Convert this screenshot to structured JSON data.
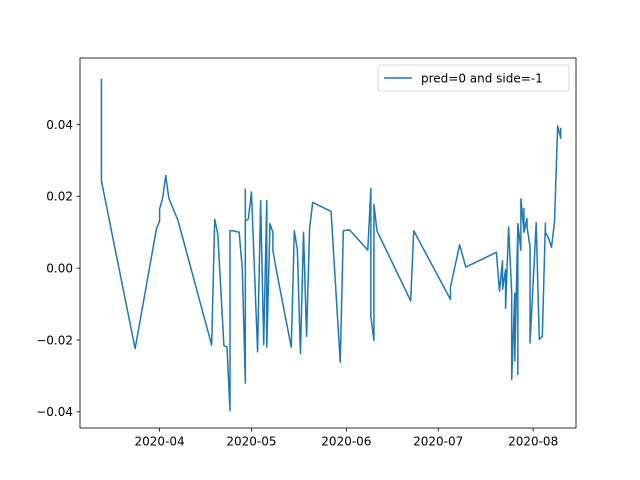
{
  "chart_data": {
    "type": "line",
    "title": "",
    "xlabel": "",
    "ylabel": "",
    "legend": {
      "placement": "upper-right"
    },
    "grid": false,
    "xlim": [
      "2020-03-06",
      "2020-08-15"
    ],
    "ylim": [
      -0.0445,
      0.0585
    ],
    "x_ticks": [
      "2020-04-01",
      "2020-05-01",
      "2020-06-01",
      "2020-07-01",
      "2020-08-01"
    ],
    "x_tick_labels": [
      "2020-04",
      "2020-05",
      "2020-06",
      "2020-07",
      "2020-08"
    ],
    "y_ticks": [
      -0.04,
      -0.02,
      0.0,
      0.02,
      0.04
    ],
    "y_tick_labels": [
      "−0.04",
      "−0.02",
      "0.00",
      "0.02",
      "0.04"
    ],
    "series": [
      {
        "name": "pred=0 and side=-1",
        "color": "#1f77b4",
        "x": [
          "2020-03-13",
          "2020-03-13",
          "2020-03-24",
          "2020-03-31",
          "2020-04-01",
          "2020-04-01",
          "2020-04-02",
          "2020-04-03",
          "2020-04-04",
          "2020-04-07",
          "2020-04-18",
          "2020-04-19",
          "2020-04-20",
          "2020-04-22",
          "2020-04-23",
          "2020-04-24",
          "2020-04-24",
          "2020-04-24",
          "2020-04-25",
          "2020-04-27",
          "2020-04-27",
          "2020-04-28",
          "2020-04-29",
          "2020-04-29",
          "2020-04-29",
          "2020-04-30",
          "2020-05-01",
          "2020-05-03",
          "2020-05-04",
          "2020-05-05",
          "2020-05-06",
          "2020-05-06",
          "2020-05-07",
          "2020-05-07",
          "2020-05-08",
          "2020-05-08",
          "2020-05-09",
          "2020-05-14",
          "2020-05-15",
          "2020-05-16",
          "2020-05-17",
          "2020-05-18",
          "2020-05-19",
          "2020-05-20",
          "2020-05-21",
          "2020-05-27",
          "2020-05-30",
          "2020-05-31",
          "2020-06-02",
          "2020-06-08",
          "2020-06-09",
          "2020-06-09",
          "2020-06-10",
          "2020-06-10",
          "2020-06-11",
          "2020-06-22",
          "2020-06-23",
          "2020-07-05",
          "2020-07-05",
          "2020-07-08",
          "2020-07-10",
          "2020-07-20",
          "2020-07-21",
          "2020-07-22",
          "2020-07-22",
          "2020-07-23",
          "2020-07-23",
          "2020-07-24",
          "2020-07-25",
          "2020-07-25",
          "2020-07-26",
          "2020-07-26",
          "2020-07-27",
          "2020-07-27",
          "2020-07-27",
          "2020-07-28",
          "2020-07-28",
          "2020-07-29",
          "2020-07-29",
          "2020-07-29",
          "2020-07-30",
          "2020-07-30",
          "2020-07-31",
          "2020-07-31",
          "2020-08-02",
          "2020-08-03",
          "2020-08-04",
          "2020-08-05",
          "2020-08-05",
          "2020-08-06",
          "2020-08-07",
          "2020-08-08",
          "2020-08-09",
          "2020-08-10",
          "2020-08-10",
          "2020-08-10"
        ],
        "values": [
          0.0525,
          0.0243,
          -0.0224,
          0.0111,
          0.0131,
          0.0165,
          0.0195,
          0.0258,
          0.0195,
          0.0133,
          -0.0214,
          0.0136,
          0.0095,
          -0.0216,
          -0.0219,
          -0.0397,
          -0.022,
          0.0104,
          0.0104,
          0.01,
          0.0097,
          0.0,
          -0.032,
          0.022,
          0.0131,
          0.0137,
          0.0212,
          -0.0233,
          0.0188,
          -0.0213,
          0.0188,
          -0.022,
          0.0106,
          0.0124,
          0.01,
          0.005,
          0.0,
          -0.022,
          0.0104,
          0.005,
          -0.0238,
          0.01,
          -0.019,
          0.0111,
          0.0183,
          0.0158,
          -0.0262,
          0.0104,
          0.0107,
          0.005,
          0.0222,
          -0.0135,
          -0.0201,
          0.0177,
          0.0104,
          -0.0091,
          0.0104,
          -0.0087,
          -0.0052,
          0.0065,
          0.0003,
          0.0044,
          -0.0064,
          0.0021,
          -0.0059,
          -0.0004,
          -0.0112,
          0.0115,
          -0.007,
          -0.031,
          -0.007,
          -0.0258,
          0.0117,
          -0.0296,
          0.0124,
          0.005,
          0.0193,
          0.0104,
          0.0166,
          0.01,
          0.0138,
          0.0115,
          0.0058,
          -0.0208,
          0.0127,
          -0.0198,
          -0.019,
          0.0125,
          0.01,
          0.0084,
          0.0058,
          0.013,
          0.0396,
          0.0362,
          0.0389,
          0.0362
        ]
      }
    ]
  }
}
